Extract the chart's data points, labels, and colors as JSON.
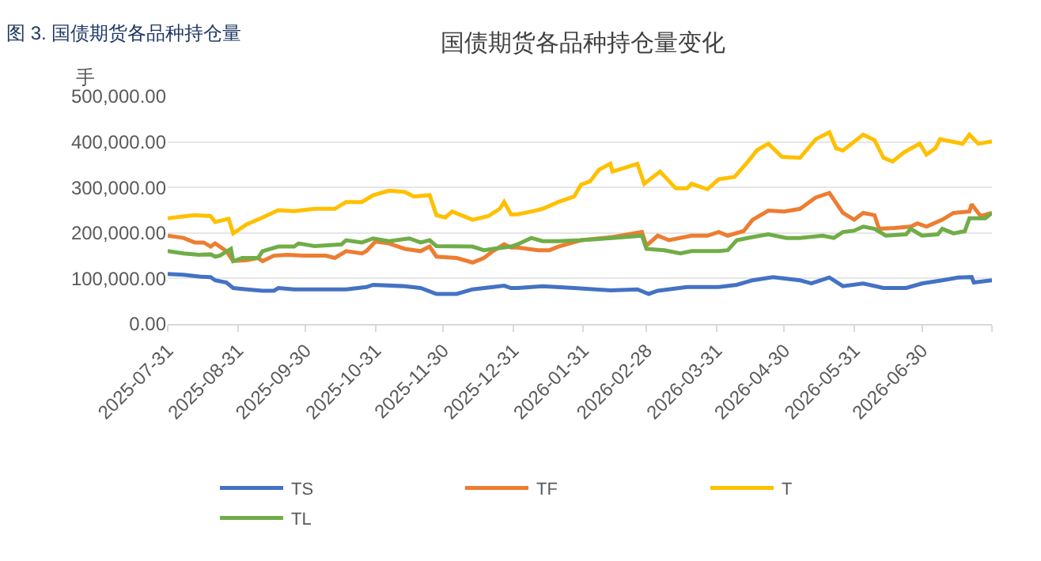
{
  "chart_data": {
    "type": "line",
    "title": "国债期货各品种持仓量变化",
    "ylabel": "手",
    "annotations": [
      "图 3. 国债期货各品种持仓量"
    ],
    "xlim": [
      "2025-07-31",
      "2026-07-31"
    ],
    "xticks": [
      {
        "value": "2025-07-31",
        "label": "2025-07-31"
      },
      {
        "value": "2025-08-31",
        "label": "2025-08-31"
      },
      {
        "value": "2025-09-30",
        "label": "2025-09-30"
      },
      {
        "value": "2025-10-31",
        "label": "2025-10-31"
      },
      {
        "value": "2025-11-30",
        "label": "2025-11-30"
      },
      {
        "value": "2025-12-31",
        "label": "2025-12-31"
      },
      {
        "value": "2026-01-31",
        "label": "2026-01-31"
      },
      {
        "value": "2026-02-28",
        "label": "2026-02-28"
      },
      {
        "value": "2026-03-31",
        "label": "2026-03-31"
      },
      {
        "value": "2026-04-30",
        "label": "2026-04-30"
      },
      {
        "value": "2026-05-31",
        "label": "2026-05-31"
      },
      {
        "value": "2026-06-30",
        "label": "2026-06-30"
      },
      {
        "value": "2026-07-31",
        "label": null
      }
    ],
    "ylim": [
      0,
      500000
    ],
    "yticks": [
      {
        "value": 0,
        "label": "0.00"
      },
      {
        "value": 100000,
        "label": "100,000.00"
      },
      {
        "value": 200000,
        "label": "200,000.00"
      },
      {
        "value": 300000,
        "label": "300,000.00"
      },
      {
        "value": 400000,
        "label": "400,000.00"
      },
      {
        "value": 500000,
        "label": "500,000.00"
      }
    ],
    "grid": "y",
    "legend": "bottom",
    "marker": "none",
    "line_style": "solid",
    "series": [
      {
        "name": "TS",
        "color": "#4472c4",
        "x": [
          "2025-07-31",
          "2025-08-07",
          "2025-08-14",
          "2025-08-19",
          "2025-08-21",
          "2025-08-26",
          "2025-08-29",
          "2025-09-04",
          "2025-09-11",
          "2025-09-16",
          "2025-09-18",
          "2025-09-25",
          "2025-10-04",
          "2025-10-18",
          "2025-10-27",
          "2025-10-30",
          "2025-11-13",
          "2025-11-20",
          "2025-11-27",
          "2025-12-06",
          "2025-12-13",
          "2025-12-22",
          "2025-12-27",
          "2025-12-30",
          "2026-01-02",
          "2026-01-13",
          "2026-01-27",
          "2026-02-12",
          "2026-02-24",
          "2026-03-01",
          "2026-03-05",
          "2026-03-18",
          "2026-04-01",
          "2026-04-09",
          "2026-04-16",
          "2026-04-25",
          "2026-05-07",
          "2026-05-12",
          "2026-05-20",
          "2026-05-26",
          "2026-06-04",
          "2026-06-13",
          "2026-06-23",
          "2026-06-30",
          "2026-07-09",
          "2026-07-16",
          "2026-07-22",
          "2026-07-23",
          "2026-07-31"
        ],
        "values": [
          110000,
          108000,
          104000,
          103000,
          96000,
          91000,
          79000,
          76000,
          73000,
          73000,
          79000,
          76000,
          76000,
          76000,
          81000,
          86000,
          83000,
          79000,
          66000,
          66000,
          76000,
          81000,
          84000,
          79000,
          79000,
          83000,
          79000,
          74000,
          76000,
          66000,
          73000,
          81000,
          81000,
          86000,
          96000,
          103000,
          96000,
          89000,
          102000,
          83000,
          89000,
          79000,
          79000,
          89000,
          96000,
          102000,
          103000,
          91000,
          96000
        ]
      },
      {
        "name": "TF",
        "color": "#ed7d31",
        "x": [
          "2025-07-31",
          "2025-08-07",
          "2025-08-12",
          "2025-08-16",
          "2025-08-19",
          "2025-08-21",
          "2025-08-26",
          "2025-08-29",
          "2025-09-04",
          "2025-09-09",
          "2025-09-11",
          "2025-09-16",
          "2025-09-22",
          "2025-09-29",
          "2025-10-09",
          "2025-10-13",
          "2025-10-18",
          "2025-10-25",
          "2025-10-27",
          "2025-10-31",
          "2025-11-06",
          "2025-11-13",
          "2025-11-20",
          "2025-11-24",
          "2025-11-27",
          "2025-12-06",
          "2025-12-13",
          "2025-12-18",
          "2025-12-22",
          "2025-12-27",
          "2025-12-30",
          "2026-01-02",
          "2026-01-11",
          "2026-01-16",
          "2026-01-20",
          "2026-01-30",
          "2026-02-13",
          "2026-02-26",
          "2026-02-28",
          "2026-03-05",
          "2026-03-10",
          "2026-03-20",
          "2026-03-27",
          "2026-04-01",
          "2026-04-05",
          "2026-04-12",
          "2026-04-16",
          "2026-04-23",
          "2026-04-30",
          "2026-05-07",
          "2026-05-14",
          "2026-05-20",
          "2026-05-26",
          "2026-05-31",
          "2026-06-04",
          "2026-06-09",
          "2026-06-11",
          "2026-06-18",
          "2026-06-25",
          "2026-06-28",
          "2026-07-02",
          "2026-07-09",
          "2026-07-14",
          "2026-07-21",
          "2026-07-22",
          "2026-07-26",
          "2026-07-31"
        ],
        "values": [
          194000,
          189000,
          179000,
          179000,
          170000,
          177000,
          160000,
          138000,
          140000,
          145000,
          138000,
          150000,
          152000,
          150000,
          150000,
          145000,
          160000,
          155000,
          160000,
          181000,
          177000,
          165000,
          160000,
          170000,
          148000,
          145000,
          135000,
          145000,
          160000,
          175000,
          168000,
          168000,
          162000,
          162000,
          170000,
          184000,
          191000,
          202000,
          172000,
          194000,
          184000,
          194000,
          194000,
          202000,
          194000,
          204000,
          229000,
          249000,
          247000,
          253000,
          278000,
          288000,
          244000,
          229000,
          244000,
          239000,
          209000,
          211000,
          214000,
          221000,
          214000,
          229000,
          244000,
          247000,
          263000,
          237000,
          244000
        ]
      },
      {
        "name": "T",
        "color": "#ffc000",
        "x": [
          "2025-07-31",
          "2025-08-12",
          "2025-08-19",
          "2025-08-21",
          "2025-08-27",
          "2025-08-29",
          "2025-09-04",
          "2025-09-11",
          "2025-09-18",
          "2025-09-25",
          "2025-10-04",
          "2025-10-13",
          "2025-10-18",
          "2025-10-25",
          "2025-10-30",
          "2025-11-06",
          "2025-11-13",
          "2025-11-17",
          "2025-11-24",
          "2025-11-27",
          "2025-12-01",
          "2025-12-04",
          "2025-12-08",
          "2025-12-13",
          "2025-12-20",
          "2025-12-25",
          "2025-12-27",
          "2025-12-30",
          "2026-01-02",
          "2026-01-09",
          "2026-01-13",
          "2026-01-20",
          "2026-01-27",
          "2026-01-30",
          "2026-02-03",
          "2026-02-07",
          "2026-02-12",
          "2026-02-13",
          "2026-02-24",
          "2026-02-27",
          "2026-03-06",
          "2026-03-13",
          "2026-03-18",
          "2026-03-20",
          "2026-03-27",
          "2026-04-01",
          "2026-04-08",
          "2026-04-14",
          "2026-04-18",
          "2026-04-23",
          "2026-04-29",
          "2026-05-07",
          "2026-05-14",
          "2026-05-20",
          "2026-05-23",
          "2026-05-26",
          "2026-06-04",
          "2026-06-09",
          "2026-06-13",
          "2026-06-17",
          "2026-06-22",
          "2026-06-29",
          "2026-07-02",
          "2026-07-06",
          "2026-07-08",
          "2026-07-18",
          "2026-07-21",
          "2026-07-25",
          "2026-07-31"
        ],
        "values": [
          232000,
          239000,
          237000,
          224000,
          231000,
          199000,
          219000,
          234000,
          250000,
          248000,
          253000,
          253000,
          268000,
          268000,
          283000,
          293000,
          290000,
          280000,
          283000,
          239000,
          234000,
          247000,
          239000,
          229000,
          237000,
          253000,
          268000,
          241000,
          241000,
          248000,
          253000,
          268000,
          280000,
          306000,
          313000,
          339000,
          352000,
          335000,
          352000,
          308000,
          335000,
          298000,
          298000,
          308000,
          296000,
          318000,
          323000,
          357000,
          382000,
          396000,
          367000,
          365000,
          406000,
          421000,
          386000,
          381000,
          416000,
          404000,
          365000,
          357000,
          377000,
          396000,
          372000,
          386000,
          406000,
          396000,
          416000,
          396000,
          401000
        ]
      },
      {
        "name": "TL",
        "color": "#70ad47",
        "x": [
          "2025-07-31",
          "2025-08-07",
          "2025-08-14",
          "2025-08-19",
          "2025-08-21",
          "2025-08-23",
          "2025-08-28",
          "2025-08-29",
          "2025-09-02",
          "2025-09-09",
          "2025-09-11",
          "2025-09-18",
          "2025-09-25",
          "2025-09-27",
          "2025-10-04",
          "2025-10-16",
          "2025-10-18",
          "2025-10-25",
          "2025-10-30",
          "2025-11-06",
          "2025-11-15",
          "2025-11-20",
          "2025-11-24",
          "2025-11-27",
          "2025-12-13",
          "2025-12-18",
          "2025-12-22",
          "2025-12-30",
          "2026-01-02",
          "2026-01-08",
          "2026-01-13",
          "2026-01-20",
          "2026-01-30",
          "2026-02-13",
          "2026-02-26",
          "2026-02-28",
          "2026-03-08",
          "2026-03-15",
          "2026-03-20",
          "2026-04-01",
          "2026-04-05",
          "2026-04-09",
          "2026-04-16",
          "2026-04-23",
          "2026-05-01",
          "2026-05-07",
          "2026-05-17",
          "2026-05-22",
          "2026-05-26",
          "2026-05-31",
          "2026-06-04",
          "2026-06-09",
          "2026-06-14",
          "2026-06-23",
          "2026-06-25",
          "2026-06-30",
          "2026-07-07",
          "2026-07-09",
          "2026-07-14",
          "2026-07-19",
          "2026-07-21",
          "2026-07-28",
          "2026-07-31"
        ],
        "values": [
          160000,
          155000,
          152000,
          153000,
          148000,
          150000,
          165000,
          138000,
          145000,
          145000,
          160000,
          170000,
          170000,
          177000,
          171000,
          175000,
          184000,
          179000,
          188000,
          182000,
          188000,
          179000,
          184000,
          171000,
          170000,
          162000,
          165000,
          170000,
          175000,
          189000,
          182000,
          182000,
          184000,
          189000,
          194000,
          165000,
          162000,
          155000,
          160000,
          160000,
          162000,
          184000,
          191000,
          197000,
          189000,
          189000,
          194000,
          189000,
          202000,
          205000,
          214000,
          209000,
          194000,
          197000,
          209000,
          194000,
          197000,
          209000,
          199000,
          204000,
          232000,
          232000,
          244000
        ]
      }
    ]
  }
}
